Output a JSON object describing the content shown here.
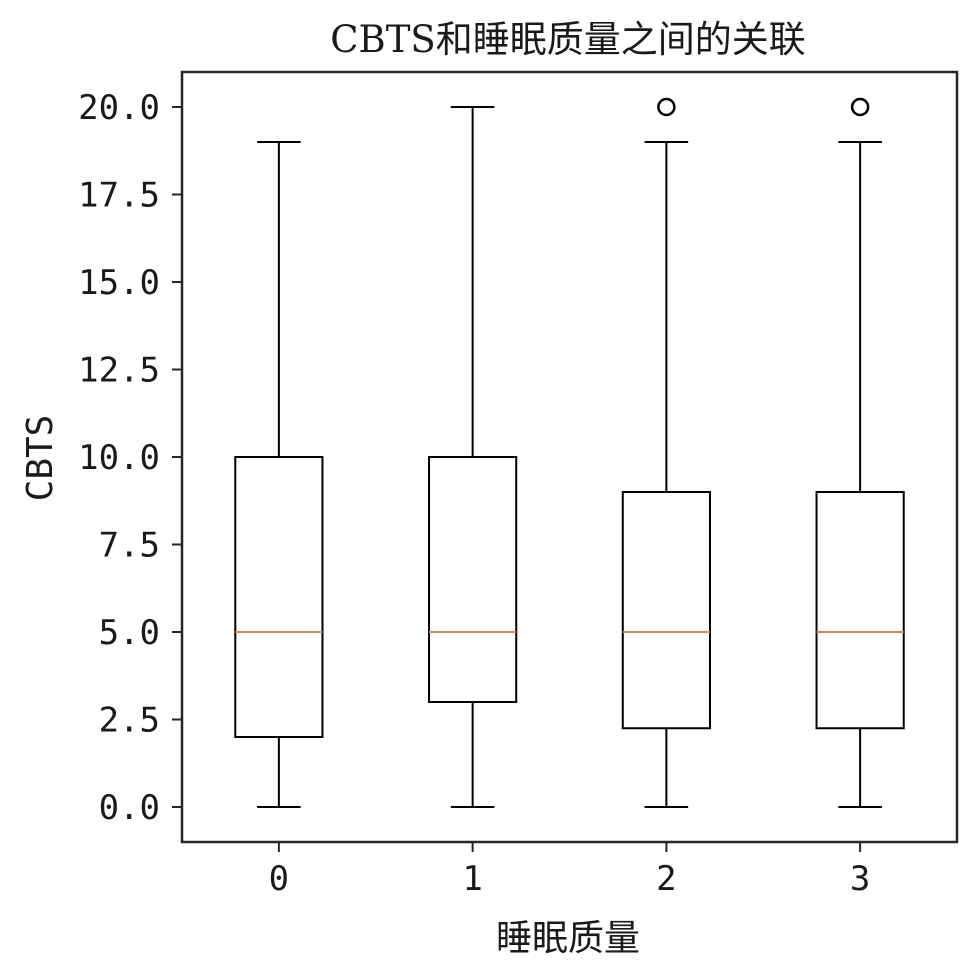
{
  "chart_data": {
    "type": "box",
    "title": "CBTS和睡眠质量之间的关联",
    "xlabel": "睡眠质量",
    "ylabel": "CBTS",
    "categories": [
      "0",
      "1",
      "2",
      "3"
    ],
    "boxes": [
      {
        "category": "0",
        "whisker_low": 0,
        "q1": 2.0,
        "median": 5.0,
        "q3": 10.0,
        "whisker_high": 19.0,
        "outliers": []
      },
      {
        "category": "1",
        "whisker_low": 0,
        "q1": 3.0,
        "median": 5.0,
        "q3": 10.0,
        "whisker_high": 20.0,
        "outliers": []
      },
      {
        "category": "2",
        "whisker_low": 0,
        "q1": 2.25,
        "median": 5.0,
        "q3": 9.0,
        "whisker_high": 19.0,
        "outliers": [
          20.0
        ]
      },
      {
        "category": "3",
        "whisker_low": 0,
        "q1": 2.25,
        "median": 5.0,
        "q3": 9.0,
        "whisker_high": 19.0,
        "outliers": [
          20.0
        ]
      }
    ],
    "ylim": [
      -1.0,
      21.0
    ],
    "yticks": [
      0,
      2.5,
      5,
      7.5,
      10,
      12.5,
      15,
      17.5,
      20
    ],
    "ytick_labels": [
      "0.0",
      "2.5",
      "5.0",
      "7.5",
      "10.0",
      "12.5",
      "15.0",
      "17.5",
      "20.0"
    ],
    "grid": false,
    "colors": {
      "box": "#000000",
      "median": "#dd8452",
      "axes": "#262626"
    }
  }
}
